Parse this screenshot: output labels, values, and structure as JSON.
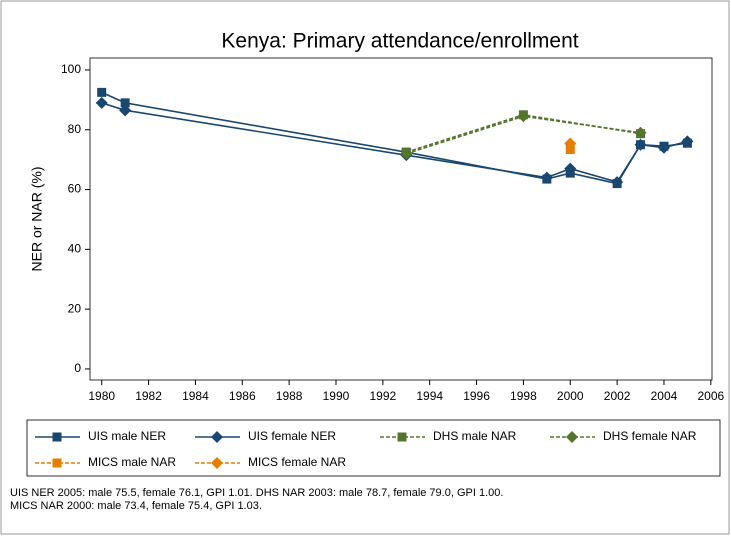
{
  "chart_data": {
    "type": "line",
    "title": "Kenya: Primary attendance/enrollment",
    "y_label": "NER or NAR (%)",
    "xlim": [
      1979.5,
      2006.05
    ],
    "xticks": [
      1980,
      1982,
      1984,
      1986,
      1988,
      1990,
      1992,
      1994,
      1996,
      1998,
      2000,
      2002,
      2004,
      2006
    ],
    "ylim": [
      -3.7,
      104
    ],
    "yticks": [
      0,
      20,
      40,
      60,
      80,
      100
    ],
    "grid": false,
    "series": [
      {
        "name": "UIS male NER",
        "color": "#1a476f",
        "marker": "square",
        "dashed": false,
        "x": [
          1980,
          1981,
          1993,
          1999,
          2000,
          2002,
          2003,
          2004,
          2005
        ],
        "values": [
          92.5,
          89,
          72.5,
          63.5,
          65.5,
          62,
          75,
          74.5,
          75.5
        ]
      },
      {
        "name": "UIS female NER",
        "color": "#1a476f",
        "marker": "diamond",
        "dashed": false,
        "x": [
          1980,
          1981,
          1993,
          1999,
          2000,
          2002,
          2003,
          2004,
          2005
        ],
        "values": [
          89,
          86.5,
          71.5,
          64,
          67,
          62.5,
          75,
          74,
          76.1
        ]
      },
      {
        "name": "DHS male NAR",
        "color": "#55752f",
        "marker": "square",
        "dashed": true,
        "x": [
          1993,
          1998,
          2003
        ],
        "values": [
          72.5,
          85,
          78.7
        ]
      },
      {
        "name": "DHS female NAR",
        "color": "#55752f",
        "marker": "diamond",
        "dashed": true,
        "x": [
          1993,
          1998,
          2003
        ],
        "values": [
          72,
          84.5,
          79.0
        ]
      },
      {
        "name": "MICS male NAR",
        "color": "#e37e00",
        "marker": "square",
        "dashed": true,
        "x": [
          2000
        ],
        "values": [
          73.4
        ]
      },
      {
        "name": "MICS female NAR",
        "color": "#e37e00",
        "marker": "diamond",
        "dashed": true,
        "x": [
          2000
        ],
        "values": [
          75.4
        ]
      }
    ],
    "note": [
      "UIS NER 2005: male 75.5, female 76.1, GPI 1.01. DHS NAR 2003: male 78.7, female 79.0, GPI 1.00.",
      "MICS NAR 2000: male 73.4, female 75.4, GPI 1.03."
    ]
  }
}
